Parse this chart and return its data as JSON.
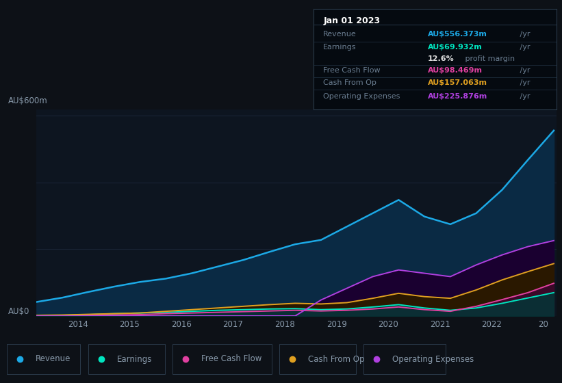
{
  "bg_color": "#0d1117",
  "chart_bg": "#0d1520",
  "grid_color": "#1a2535",
  "text_color": "#8899aa",
  "ylabel_top": "AU$600m",
  "ylabel_bottom": "AU$0",
  "ylim": [
    0,
    620
  ],
  "years": [
    2013.0,
    2013.5,
    2014.0,
    2014.5,
    2015.0,
    2015.5,
    2016.0,
    2016.5,
    2017.0,
    2017.5,
    2018.0,
    2018.5,
    2019.0,
    2019.5,
    2020.0,
    2020.5,
    2021.0,
    2021.5,
    2022.0,
    2022.5,
    2023.0
  ],
  "revenue": [
    42,
    55,
    72,
    88,
    102,
    112,
    128,
    148,
    168,
    192,
    215,
    228,
    268,
    308,
    348,
    298,
    275,
    308,
    378,
    468,
    556
  ],
  "earnings": [
    1,
    2,
    4,
    7,
    9,
    11,
    14,
    17,
    19,
    21,
    22,
    19,
    21,
    27,
    34,
    24,
    17,
    24,
    38,
    54,
    70
  ],
  "free_cash_flow": [
    0,
    1,
    2,
    3,
    4,
    7,
    9,
    11,
    13,
    15,
    17,
    15,
    17,
    21,
    27,
    19,
    14,
    29,
    49,
    70,
    98
  ],
  "cash_from_op": [
    2,
    3,
    5,
    7,
    9,
    14,
    19,
    24,
    29,
    34,
    38,
    36,
    40,
    53,
    68,
    58,
    53,
    78,
    108,
    133,
    157
  ],
  "operating_expenses": [
    0,
    0,
    0,
    0,
    0,
    0,
    0,
    0,
    0,
    0,
    0,
    48,
    83,
    118,
    138,
    128,
    118,
    153,
    183,
    208,
    226
  ],
  "revenue_color": "#1ca9e6",
  "earnings_color": "#00e5c0",
  "free_cash_flow_color": "#e040a0",
  "cash_from_op_color": "#e0a020",
  "operating_expenses_color": "#b040e0",
  "revenue_fill": "#0a2a44",
  "earnings_fill": "#003838",
  "free_cash_flow_fill": "#3a0828",
  "cash_from_op_fill": "#2a1800",
  "operating_expenses_fill": "#1a0030",
  "tooltip_date": "Jan 01 2023",
  "tooltip_revenue_label": "Revenue",
  "tooltip_revenue_val": "AU$556.373m",
  "tooltip_earnings_label": "Earnings",
  "tooltip_earnings_val": "AU$69.932m",
  "tooltip_margin_bold": "12.6%",
  "tooltip_margin_rest": " profit margin",
  "tooltip_fcf_label": "Free Cash Flow",
  "tooltip_fcf_val": "AU$98.469m",
  "tooltip_cfop_label": "Cash From Op",
  "tooltip_cfop_val": "AU$157.063m",
  "tooltip_opex_label": "Operating Expenses",
  "tooltip_opex_val": "AU$225.876m",
  "legend_items": [
    "Revenue",
    "Earnings",
    "Free Cash Flow",
    "Cash From Op",
    "Operating Expenses"
  ],
  "legend_colors": [
    "#1ca9e6",
    "#00e5c0",
    "#e040a0",
    "#e0a020",
    "#b040e0"
  ]
}
